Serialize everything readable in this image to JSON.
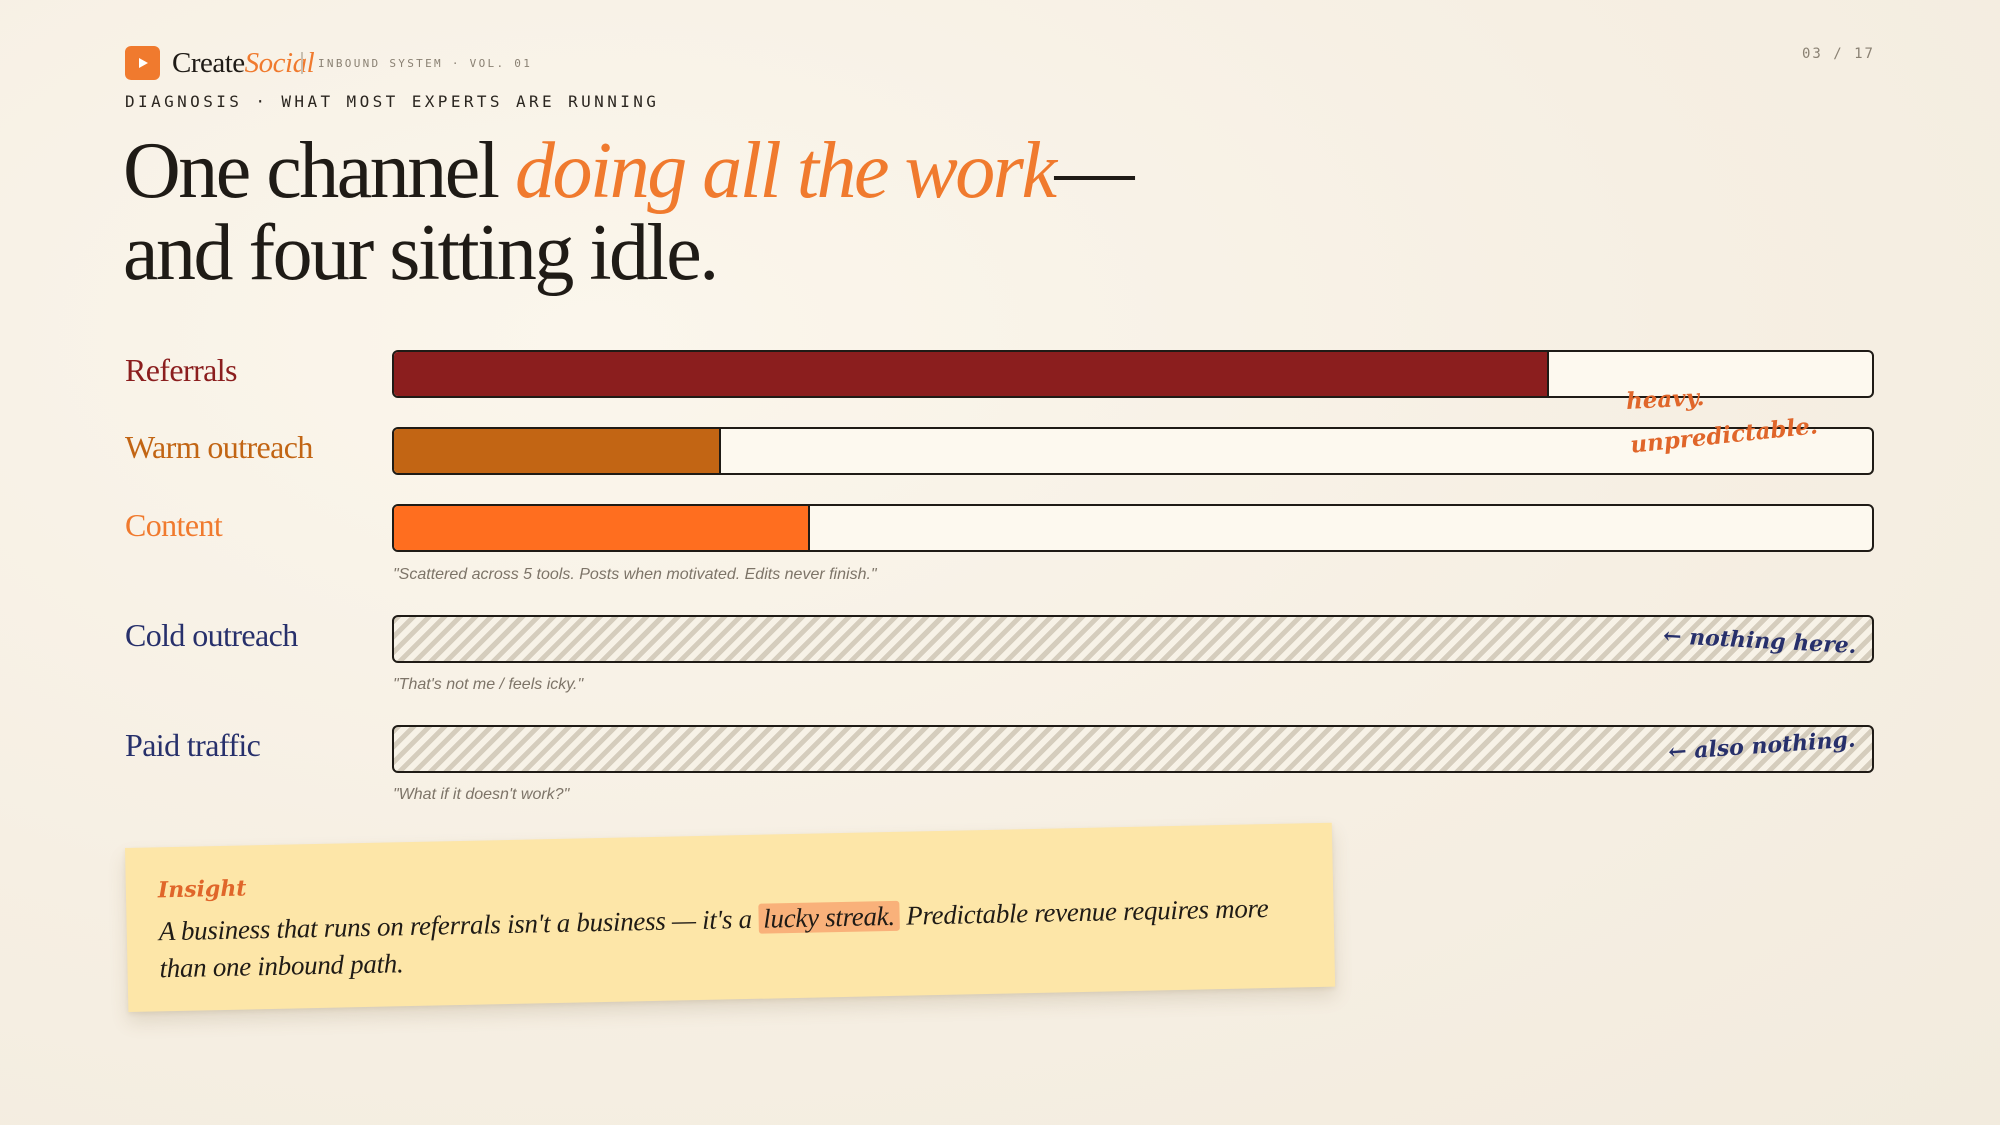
{
  "brand": {
    "name_part1": "Create",
    "name_part2": "Social",
    "subtitle": "INBOUND SYSTEM · VOL. 01",
    "accent_color": "#f07a2e"
  },
  "page_counter": "03 / 17",
  "kicker": "DIAGNOSIS · WHAT MOST EXPERTS ARE RUNNING",
  "headline": {
    "part1": "One channel ",
    "accent": "doing all the work",
    "part2": "—",
    "line2": "and four sitting idle."
  },
  "channels": [
    {
      "label": "Referrals",
      "fill_fraction": 0.78,
      "fill_color": "#8b1e1e",
      "label_color": "#8b1e1e",
      "quote": ""
    },
    {
      "label": "Warm outreach",
      "fill_fraction": 0.22,
      "fill_color": "#c26514",
      "label_color": "#c26514",
      "quote": ""
    },
    {
      "label": "Content",
      "fill_fraction": 0.28,
      "fill_color": "#ff6e1f",
      "label_color": "#f07a2e",
      "quote": "\"Scattered across 5 tools. Posts when motivated. Edits never finish.\""
    },
    {
      "label": "Cold outreach",
      "fill_fraction": 0,
      "label_color": "#27306b",
      "quote": "\"That's not me / feels icky.\""
    },
    {
      "label": "Paid traffic",
      "fill_fraction": 0,
      "label_color": "#27306b",
      "quote": "\"What if it doesn't work?\""
    }
  ],
  "annotations": {
    "referrals_line1": "heavy.",
    "referrals_line2": "unpredictable.",
    "cold": "← nothing here.",
    "paid": "← also nothing."
  },
  "insight": {
    "title": "Insight",
    "text_before": "A business that runs on referrals isn't a business — it's a ",
    "highlight": "lucky streak.",
    "text_after": " Predictable revenue requires more than one inbound path."
  }
}
